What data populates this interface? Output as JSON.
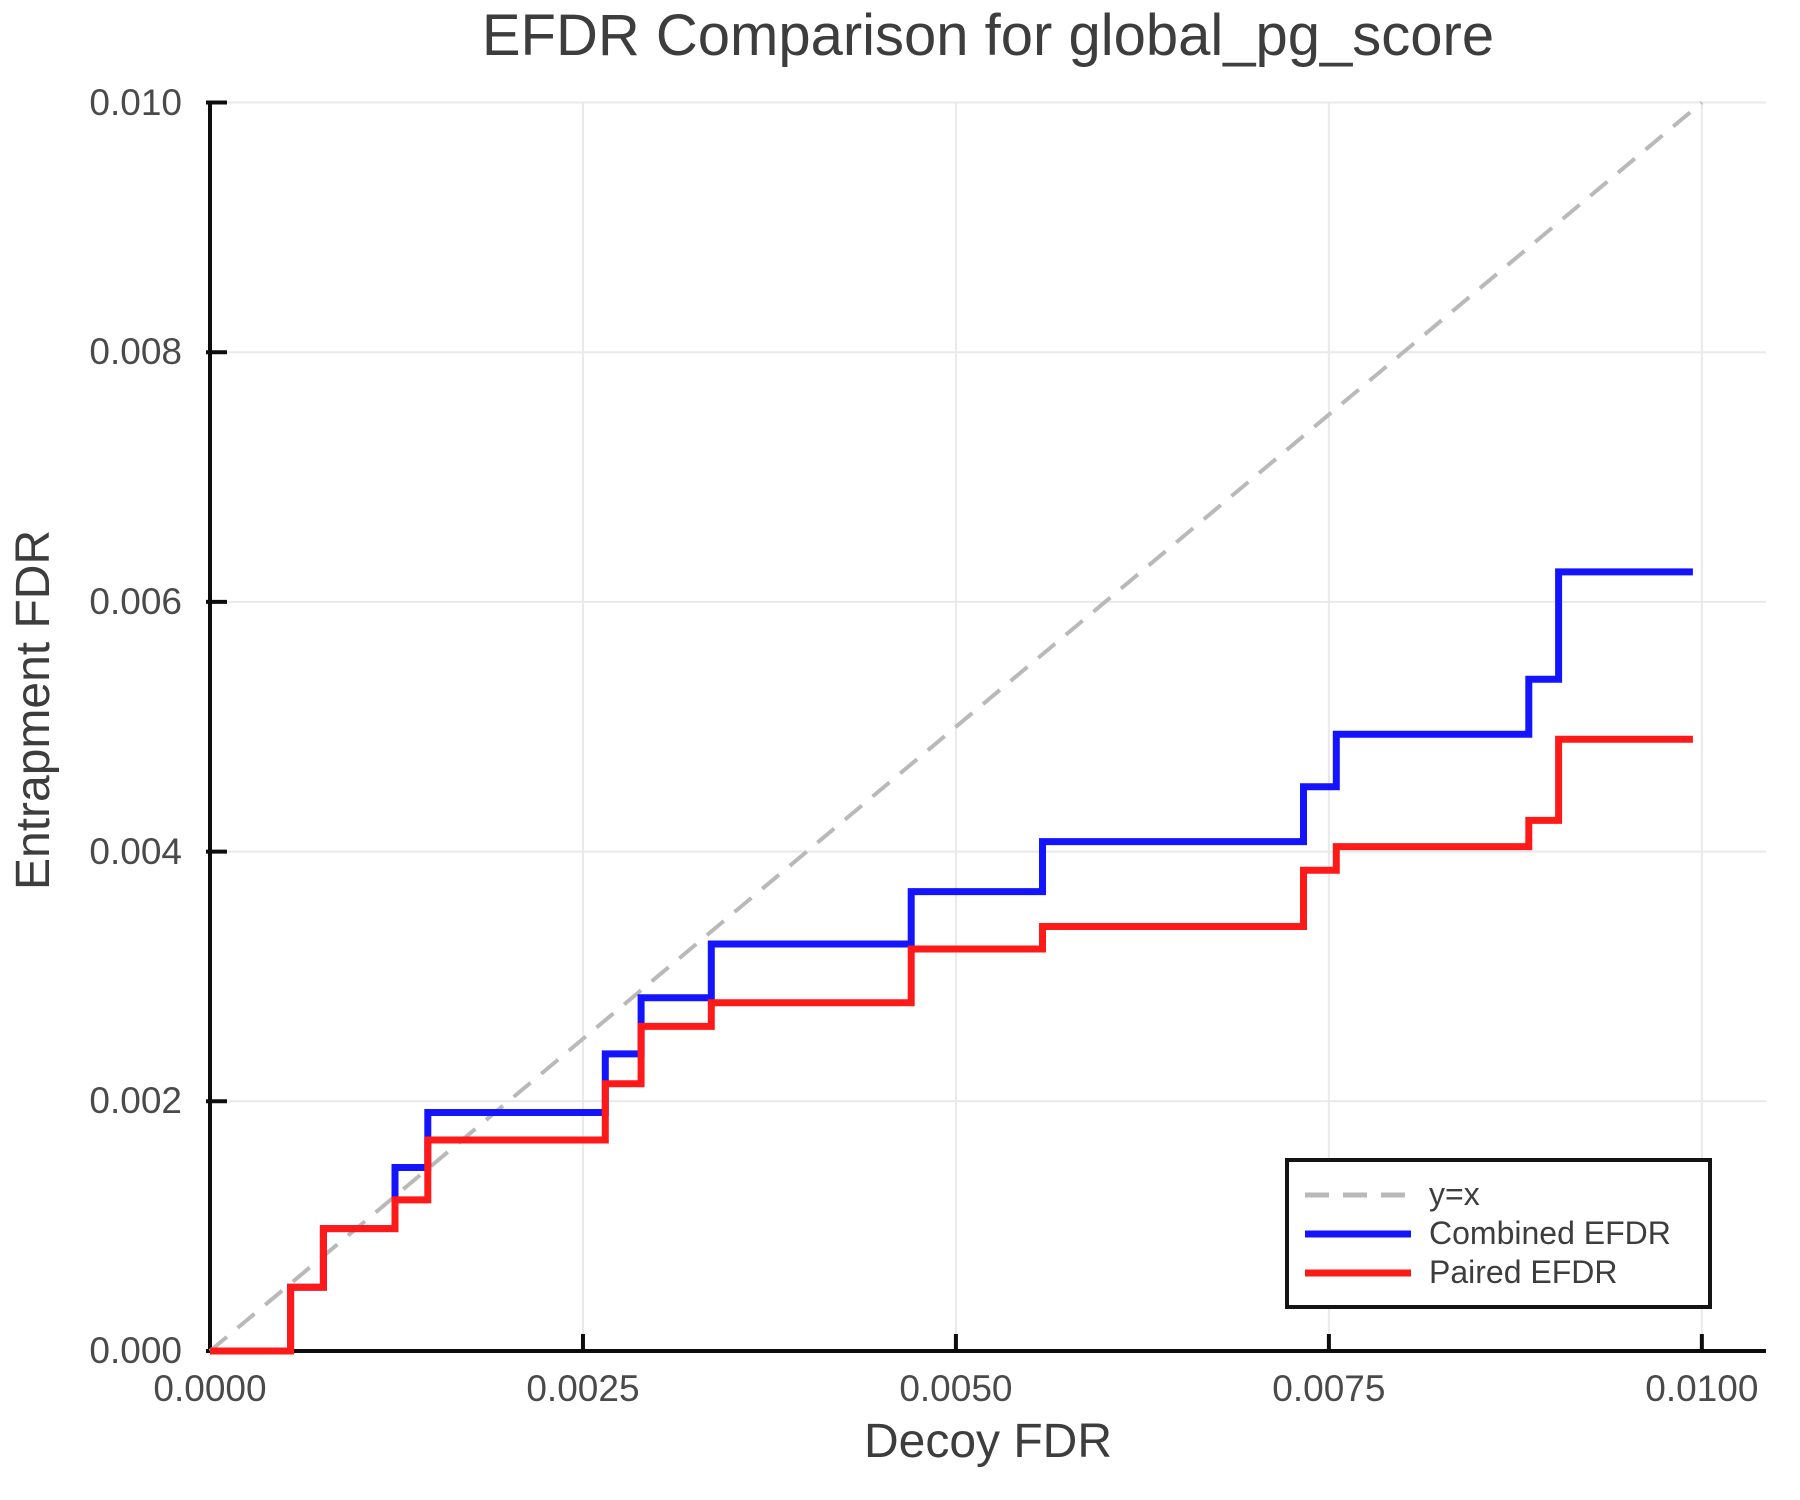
{
  "figure": {
    "title": "EFDR Comparison for global_pg_score",
    "xlabel": "Decoy FDR",
    "ylabel": "Entrapment FDR"
  },
  "colors": {
    "combined": "#1414ff",
    "paired": "#ff1a1a",
    "identity": "#b9b9b9",
    "grid": "#e9e9e9",
    "spine": "#0d0d0d",
    "text": "#3d3d3d",
    "tick_text": "#4a4a4a"
  },
  "legend": {
    "position": "lower right",
    "entries": [
      {
        "label": "y=x",
        "color": "#b9b9b9",
        "dashed": true
      },
      {
        "label": "Combined EFDR",
        "color": "#1414ff",
        "dashed": false
      },
      {
        "label": "Paired EFDR",
        "color": "#ff1a1a",
        "dashed": false
      }
    ]
  },
  "chart_data": {
    "type": "line",
    "title": "EFDR Comparison for global_pg_score",
    "xlabel": "Decoy FDR",
    "ylabel": "Entrapment FDR",
    "xlim": [
      0,
      0.01043
    ],
    "ylim": [
      0,
      0.01
    ],
    "grid": true,
    "legend_position": "lower right",
    "x_ticks": {
      "values": [
        0.0,
        0.0025,
        0.005,
        0.0075,
        0.01
      ],
      "labels": [
        "0.0000",
        "0.0025",
        "0.0050",
        "0.0075",
        "0.0100"
      ]
    },
    "y_ticks": {
      "values": [
        0.0,
        0.002,
        0.004,
        0.006,
        0.008,
        0.01
      ],
      "labels": [
        "0.000",
        "0.002",
        "0.004",
        "0.006",
        "0.008",
        "0.010"
      ]
    },
    "series": [
      {
        "name": "y=x",
        "type": "line",
        "style": "dashed",
        "color": "#b9b9b9",
        "x": [
          0,
          0.01
        ],
        "y": [
          0,
          0.01
        ]
      },
      {
        "name": "Combined EFDR",
        "type": "step-post",
        "color": "#1414ff",
        "start": [
          0,
          0
        ],
        "end_x": 0.00994,
        "jumps": [
          [
            0.00054,
            0.00051
          ],
          [
            0.00076,
            0.00098
          ],
          [
            0.00124,
            0.00147
          ],
          [
            0.00146,
            0.00191
          ],
          [
            0.00265,
            0.00238
          ],
          [
            0.00289,
            0.00283
          ],
          [
            0.00336,
            0.00326
          ],
          [
            0.0047,
            0.00368
          ],
          [
            0.00558,
            0.00408
          ],
          [
            0.00733,
            0.00452
          ],
          [
            0.00755,
            0.00494
          ],
          [
            0.00884,
            0.00538
          ],
          [
            0.00904,
            0.00624
          ]
        ]
      },
      {
        "name": "Paired EFDR",
        "type": "step-post",
        "color": "#ff1a1a",
        "start": [
          0,
          0
        ],
        "end_x": 0.00994,
        "jumps": [
          [
            0.00054,
            0.00051
          ],
          [
            0.00076,
            0.00098
          ],
          [
            0.00124,
            0.00121
          ],
          [
            0.00146,
            0.00169
          ],
          [
            0.00265,
            0.00214
          ],
          [
            0.00289,
            0.0026
          ],
          [
            0.00336,
            0.00279
          ],
          [
            0.0047,
            0.00322
          ],
          [
            0.00558,
            0.0034
          ],
          [
            0.00733,
            0.00385
          ],
          [
            0.00755,
            0.00404
          ],
          [
            0.00884,
            0.00425
          ],
          [
            0.00904,
            0.0049
          ]
        ]
      }
    ]
  }
}
